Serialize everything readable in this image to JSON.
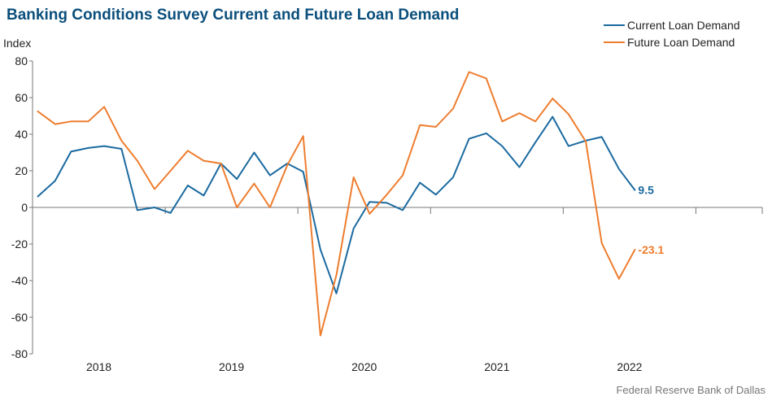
{
  "chart_data": {
    "type": "line",
    "title": "Banking Conditions Survey Current and Future Loan Demand",
    "ylabel": "Index",
    "xlabel": "",
    "ylim": [
      -80,
      80
    ],
    "y_ticks": [
      80,
      60,
      40,
      20,
      0,
      -20,
      -40,
      -60,
      -80
    ],
    "x_range": [
      2017.5,
      2023.0
    ],
    "x_tick_labels": [
      {
        "label": "2018",
        "x": 2018.0
      },
      {
        "label": "2019",
        "x": 2019.0
      },
      {
        "label": "2020",
        "x": 2020.0
      },
      {
        "label": "2021",
        "x": 2021.0
      },
      {
        "label": "2022",
        "x": 2022.0
      }
    ],
    "year_boundaries": [
      2017.5,
      2018.5,
      2019.5,
      2020.5,
      2021.5,
      2022.5,
      2023.0
    ],
    "grid": false,
    "legend_position": "top-right",
    "series": [
      {
        "name": "Current Loan Demand",
        "color": "#1b6aa0",
        "end_label": "9.5",
        "points": [
          [
            2017.54,
            6.0
          ],
          [
            2017.67,
            14.5
          ],
          [
            2017.79,
            30.5
          ],
          [
            2017.92,
            32.5
          ],
          [
            2018.04,
            33.5
          ],
          [
            2018.17,
            32.0
          ],
          [
            2018.29,
            -1.5
          ],
          [
            2018.42,
            0.0
          ],
          [
            2018.54,
            -3.0
          ],
          [
            2018.67,
            12.0
          ],
          [
            2018.79,
            6.5
          ],
          [
            2018.92,
            24.0
          ],
          [
            2019.04,
            15.5
          ],
          [
            2019.17,
            30.0
          ],
          [
            2019.29,
            17.5
          ],
          [
            2019.42,
            24.0
          ],
          [
            2019.54,
            19.5
          ],
          [
            2019.67,
            -23.0
          ],
          [
            2019.79,
            -47.0
          ],
          [
            2019.92,
            -11.5
          ],
          [
            2020.04,
            3.0
          ],
          [
            2020.17,
            2.5
          ],
          [
            2020.29,
            -1.5
          ],
          [
            2020.42,
            13.5
          ],
          [
            2020.54,
            7.0
          ],
          [
            2020.67,
            16.5
          ],
          [
            2020.79,
            37.5
          ],
          [
            2020.92,
            40.5
          ],
          [
            2021.04,
            33.5
          ],
          [
            2021.17,
            22.0
          ],
          [
            2021.29,
            35.5
          ],
          [
            2021.42,
            49.5
          ],
          [
            2021.54,
            33.5
          ],
          [
            2021.67,
            36.5
          ],
          [
            2021.79,
            38.5
          ],
          [
            2021.92,
            21.0
          ],
          [
            2022.04,
            9.5
          ]
        ]
      },
      {
        "name": "Future Loan Demand",
        "color": "#ee7d2f",
        "end_label": "-23.1",
        "points": [
          [
            2017.54,
            52.5
          ],
          [
            2017.67,
            45.5
          ],
          [
            2017.79,
            47.0
          ],
          [
            2017.92,
            47.0
          ],
          [
            2018.04,
            55.0
          ],
          [
            2018.17,
            36.5
          ],
          [
            2018.29,
            25.5
          ],
          [
            2018.42,
            10.0
          ],
          [
            2018.54,
            20.0
          ],
          [
            2018.67,
            31.0
          ],
          [
            2018.79,
            25.5
          ],
          [
            2018.92,
            24.0
          ],
          [
            2019.04,
            0.0
          ],
          [
            2019.17,
            13.0
          ],
          [
            2019.29,
            0.0
          ],
          [
            2019.42,
            23.0
          ],
          [
            2019.54,
            39.0
          ],
          [
            2019.67,
            -70.0
          ],
          [
            2019.79,
            -37.0
          ],
          [
            2019.92,
            16.5
          ],
          [
            2020.04,
            -3.5
          ],
          [
            2020.17,
            7.0
          ],
          [
            2020.29,
            17.5
          ],
          [
            2020.42,
            45.0
          ],
          [
            2020.54,
            44.0
          ],
          [
            2020.67,
            54.0
          ],
          [
            2020.79,
            74.0
          ],
          [
            2020.92,
            70.5
          ],
          [
            2021.04,
            47.0
          ],
          [
            2021.17,
            51.5
          ],
          [
            2021.29,
            47.0
          ],
          [
            2021.42,
            59.5
          ],
          [
            2021.54,
            51.0
          ],
          [
            2021.67,
            36.0
          ],
          [
            2021.79,
            -19.5
          ],
          [
            2021.92,
            -39.0
          ],
          [
            2022.04,
            -23.1
          ]
        ]
      }
    ]
  },
  "source": "Federal Reserve Bank of Dallas"
}
